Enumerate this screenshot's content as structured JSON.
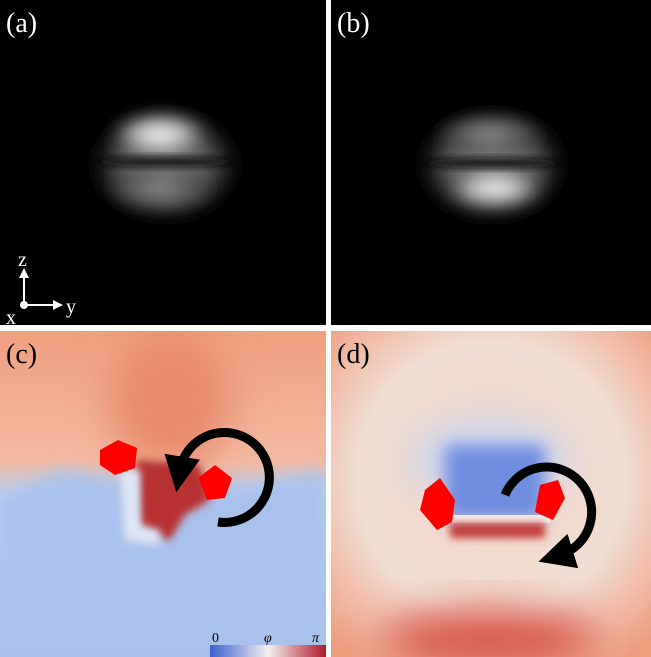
{
  "panels": [
    {
      "label": "(a)"
    },
    {
      "label": "(b)"
    },
    {
      "label": "(c)"
    },
    {
      "label": "(d)"
    }
  ],
  "axes": {
    "z": "z",
    "x": "x",
    "y": "y"
  },
  "colorbar": {
    "min": "0",
    "symbol": "φ",
    "max": "π"
  }
}
